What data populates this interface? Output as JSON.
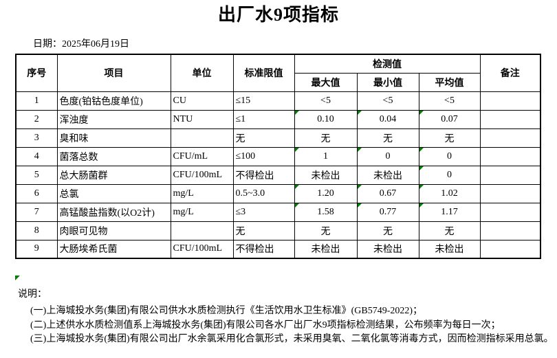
{
  "page": {
    "title": "出厂水9项指标",
    "date": {
      "label": "日期：",
      "value": "2025年06月19日"
    }
  },
  "table": {
    "headers": {
      "no": "序号",
      "item": "项目",
      "unit": "单位",
      "limit": "标准限值",
      "detection": "检测值",
      "max": "最大值",
      "min": "最小值",
      "avg": "平均值",
      "remark": "备注"
    },
    "rows": [
      {
        "no": "1",
        "item": "色度(铂钴色度单位)",
        "unit": "CU",
        "limit": "≤15",
        "max": "<5",
        "min": "<5",
        "avg": "<5",
        "remark": "",
        "flags": [
          false,
          false,
          false
        ]
      },
      {
        "no": "2",
        "item": "浑浊度",
        "unit": "NTU",
        "limit": "≤1",
        "max": "0.10",
        "min": "0.04",
        "avg": "0.07",
        "remark": "",
        "flags": [
          true,
          true,
          true
        ]
      },
      {
        "no": "3",
        "item": "臭和味",
        "unit": "",
        "limit": "无",
        "max": "无",
        "min": "无",
        "avg": "无",
        "remark": "",
        "flags": [
          false,
          false,
          false
        ]
      },
      {
        "no": "4",
        "item": "菌落总数",
        "unit": "CFU/mL",
        "limit": "≤100",
        "max": "1",
        "min": "0",
        "avg": "0",
        "remark": "",
        "flags": [
          true,
          true,
          true
        ]
      },
      {
        "no": "5",
        "item": "总大肠菌群",
        "unit": "CFU/100mL",
        "limit": "不得检出",
        "max": "未检出",
        "min": "未检出",
        "avg": "0",
        "remark": "",
        "flags": [
          false,
          false,
          true
        ]
      },
      {
        "no": "6",
        "item": "总氯",
        "unit": "mg/L",
        "limit": "0.5~3.0",
        "max": "1.20",
        "min": "0.67",
        "avg": "1.02",
        "remark": "",
        "flags": [
          true,
          true,
          true
        ]
      },
      {
        "no": "7",
        "item": "高锰酸盐指数(以O2计)",
        "unit": "mg/L",
        "limit": "≤3",
        "max": "1.58",
        "min": "0.77",
        "avg": "1.17",
        "remark": "",
        "flags": [
          true,
          true,
          true
        ]
      },
      {
        "no": "8",
        "item": "肉眼可见物",
        "unit": "",
        "limit": "无",
        "max": "无",
        "min": "无",
        "avg": "无",
        "remark": "",
        "flags": [
          false,
          false,
          false
        ]
      },
      {
        "no": "9",
        "item": "大肠埃希氏菌",
        "unit": "CFU/100mL",
        "limit": "不得检出",
        "max": "未检出",
        "min": "未检出",
        "avg": "未检出",
        "remark": "",
        "flags": [
          false,
          false,
          false
        ]
      }
    ]
  },
  "notes": {
    "label": "说明：",
    "items": [
      "(一)上海城投水务(集团)有限公司供水水质检测执行《生活饮用水卫生标准》(GB5749-2022)；",
      "(二)上述供水水质检测值系上海城投水务(集团)有限公司各水厂出厂水9项指标检测结果，公布频率为每日一次；",
      "(三)上海城投水务(集团)有限公司出厂水余氯采用化合氯形式，未采用臭氧、二氧化氯等消毒方式，因而检测指标采用总氯。"
    ]
  },
  "icons": {
    "excel_flag": "green-corner-triangle"
  },
  "colors": {
    "flag_green": "#008000",
    "border": "#000000",
    "text": "#000000",
    "background": "#ffffff"
  }
}
